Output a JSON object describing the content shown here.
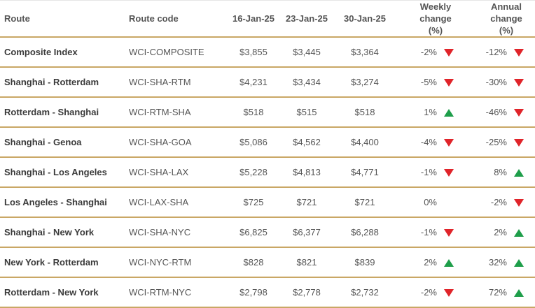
{
  "table": {
    "header": [
      "Route",
      "Route code",
      "16-Jan-25",
      "23-Jan-25",
      "30-Jan-25",
      "Weekly change (%)",
      "Annual change (%)"
    ],
    "rows": [
      [
        "Composite Index",
        "WCI-COMPOSITE",
        "$3,855",
        "$3,445",
        "$3,364",
        "-2%",
        "-12%"
      ],
      [
        "Shanghai - Rotterdam",
        "WCI-SHA-RTM",
        "$4,231",
        "$3,434",
        "$3,274",
        "-5%",
        "-30%"
      ],
      [
        "Rotterdam - Shanghai",
        "WCI-RTM-SHA",
        "$518",
        "$515",
        "$518",
        "1%",
        "-46%"
      ],
      [
        "Shanghai - Genoa",
        "WCI-SHA-GOA",
        "$5,086",
        "$4,562",
        "$4,400",
        "-4%",
        "-25%"
      ],
      [
        "Shanghai - Los Angeles",
        "WCI-SHA-LAX",
        "$5,228",
        "$4,813",
        "$4,771",
        "-1%",
        "8%"
      ],
      [
        "Los Angeles - Shanghai",
        "WCI-LAX-SHA",
        "$725",
        "$721",
        "$721",
        "0%",
        "-2%"
      ],
      [
        "Shanghai - New York",
        "WCI-SHA-NYC",
        "$6,825",
        "$6,377",
        "$6,288",
        "-1%",
        "2%"
      ],
      [
        "New York - Rotterdam",
        "WCI-NYC-RTM",
        "$828",
        "$821",
        "$839",
        "2%",
        "32%"
      ],
      [
        "Rotterdam - New York",
        "WCI-RTM-NYC",
        "$2,798",
        "$2,778",
        "$2,732",
        "-2%",
        "72%"
      ]
    ]
  }
}
